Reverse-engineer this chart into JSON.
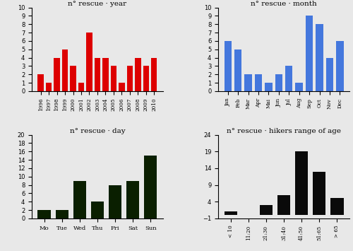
{
  "year": {
    "labels": [
      "1996",
      "1997",
      "1998",
      "1999",
      "2000",
      "2001",
      "2002",
      "2003",
      "2004",
      "2005",
      "2006",
      "2007",
      "2008",
      "2009",
      "2010"
    ],
    "values": [
      2,
      1,
      4,
      5,
      3,
      1,
      7,
      4,
      4,
      3,
      1,
      3,
      4,
      3,
      4
    ],
    "color": "#dd0000",
    "title": "n° rescue · year",
    "ylim": [
      0,
      10
    ],
    "yticks": [
      0,
      1,
      2,
      3,
      4,
      5,
      6,
      7,
      8,
      9,
      10
    ]
  },
  "month": {
    "labels": [
      "Jan",
      "Feb",
      "Mar",
      "Apr",
      "Mai",
      "Jun",
      "Jul",
      "Aug",
      "Sep",
      "Oct",
      "Nov",
      "Dec"
    ],
    "values": [
      6,
      5,
      2,
      2,
      1,
      2,
      3,
      1,
      9,
      8,
      4,
      6
    ],
    "color": "#4477dd",
    "title": "n° rescue · month",
    "ylim": [
      0,
      10
    ],
    "yticks": [
      0,
      1,
      2,
      3,
      4,
      5,
      6,
      7,
      8,
      9,
      10
    ]
  },
  "day": {
    "labels": [
      "Mo",
      "Tue",
      "Wed",
      "Thu",
      "Fri",
      "Sat",
      "Sun"
    ],
    "values": [
      2,
      2,
      9,
      4,
      8,
      9,
      15
    ],
    "color": "#0a1f00",
    "title": "n° rescue · day",
    "ylim": [
      0,
      20
    ],
    "yticks": [
      0,
      2,
      4,
      6,
      8,
      10,
      12,
      14,
      16,
      18,
      20
    ]
  },
  "age": {
    "labels": [
      "< 10",
      "11:20",
      "21:30",
      "31:40",
      "41:50",
      "51:65",
      "> 65"
    ],
    "values": [
      1,
      0,
      3,
      6,
      19,
      13,
      5
    ],
    "color": "#0a0a0a",
    "title": "n° rescue · hikers range of age",
    "ylim": [
      -1,
      24
    ],
    "yticks": [
      -1,
      4,
      9,
      14,
      19,
      24
    ]
  },
  "bg_color": "#e8e8e8"
}
